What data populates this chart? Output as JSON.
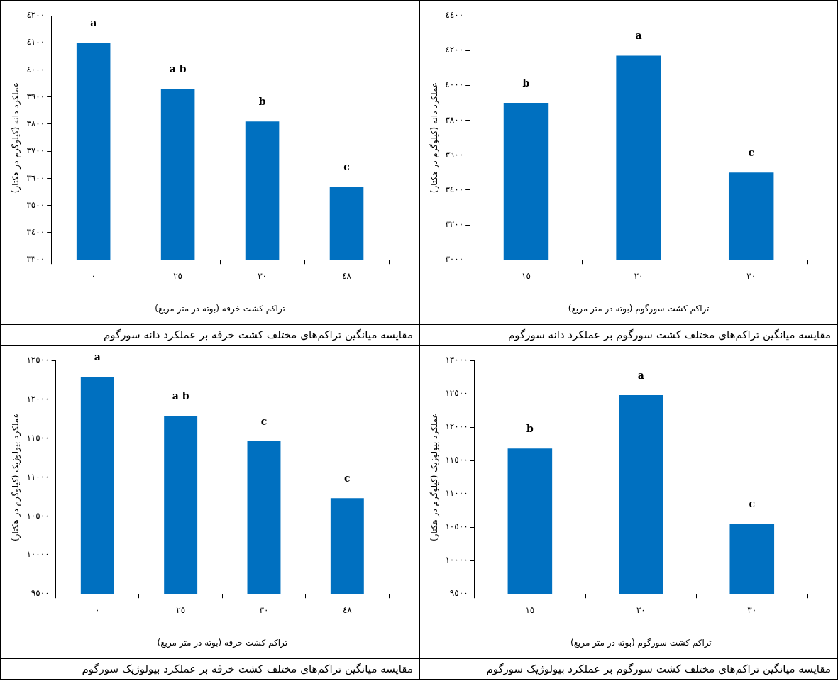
{
  "chart_data": [
    {
      "type": "bar",
      "title": "مقایسه میانگین تراکم‌های مختلف کشت خرفه بر عملکرد دانه سورگوم",
      "xlabel": "تراکم کشت خرفه (بوته در متر مربع)",
      "ylabel": "عملکرد دانه (کیلوگرم در هکتار)",
      "categories": [
        "٠",
        "٢٥",
        "٣٠",
        "٤٨"
      ],
      "values": [
        4100,
        3930,
        3810,
        3570
      ],
      "value_labels": [
        "a",
        "a b",
        "b",
        "c"
      ],
      "color": "#0070c0",
      "ylim": [
        3300,
        4200
      ],
      "yticks": [
        {
          "value": 3300,
          "label": "٣٣٠٠"
        },
        {
          "value": 3400,
          "label": "٣٤٠٠"
        },
        {
          "value": 3500,
          "label": "٣٥٠٠"
        },
        {
          "value": 3600,
          "label": "٣٦٠٠"
        },
        {
          "value": 3700,
          "label": "٣٧٠٠"
        },
        {
          "value": 3800,
          "label": "٣٨٠٠"
        },
        {
          "value": 3900,
          "label": "٣٩٠٠"
        },
        {
          "value": 4000,
          "label": "٤٠٠٠"
        },
        {
          "value": 4100,
          "label": "٤١٠٠"
        },
        {
          "value": 4200,
          "label": "٤٢٠٠"
        }
      ],
      "grid": false,
      "legend": false
    },
    {
      "type": "bar",
      "title": "مقایسه میانگین تراکم‌های مختلف کشت سورگوم بر عملکرد دانه سورگوم",
      "xlabel": "تراکم کشت سورگوم (بوته در متر مربع)",
      "ylabel": "عملکرد دانه (کیلوگرم در هکتار)",
      "categories": [
        "١٥",
        "٢٠",
        "٣٠"
      ],
      "values": [
        3900,
        4170,
        3500
      ],
      "value_labels": [
        "b",
        "a",
        "c"
      ],
      "color": "#0070c0",
      "ylim": [
        3000,
        4400
      ],
      "yticks": [
        {
          "value": 3000,
          "label": "٣٠٠٠"
        },
        {
          "value": 3200,
          "label": "٣٢٠٠"
        },
        {
          "value": 3400,
          "label": "٣٤٠٠"
        },
        {
          "value": 3600,
          "label": "٣٦٠٠"
        },
        {
          "value": 3800,
          "label": "٣٨٠٠"
        },
        {
          "value": 4000,
          "label": "٤٠٠٠"
        },
        {
          "value": 4200,
          "label": "٤٢٠٠"
        },
        {
          "value": 4400,
          "label": "٤٤٠٠"
        }
      ],
      "grid": false,
      "legend": false
    },
    {
      "type": "bar",
      "title": "مقایسه میانگین تراکم‌های مختلف کشت خرفه بر عملکرد بیولوژیک سورگوم",
      "xlabel": "تراکم کشت خرفه (بوته در متر مربع)",
      "ylabel": "عملکرد بیولوژیک (کیلوگرم در هکتار)",
      "categories": [
        "٠",
        "٢٥",
        "٣٠",
        "٤٨"
      ],
      "values": [
        12290,
        11790,
        11460,
        10730
      ],
      "value_labels": [
        "a",
        "a b",
        "c",
        "c"
      ],
      "color": "#0070c0",
      "ylim": [
        9500,
        12500
      ],
      "yticks": [
        {
          "value": 9500,
          "label": "٩٥٠٠"
        },
        {
          "value": 10000,
          "label": "١٠٠٠٠"
        },
        {
          "value": 10500,
          "label": "١٠٥٠٠"
        },
        {
          "value": 11000,
          "label": "١١٠٠٠"
        },
        {
          "value": 11500,
          "label": "١١٥٠٠"
        },
        {
          "value": 12000,
          "label": "١٢٠٠٠"
        },
        {
          "value": 12500,
          "label": "١٢٥٠٠"
        }
      ],
      "grid": false,
      "legend": false
    },
    {
      "type": "bar",
      "title": "مقایسه میانگین تراکم‌های مختلف کشت سورگوم بر عملکرد بیولوژیک سورگوم",
      "xlabel": "تراکم کشت سورگوم (بوته در متر مربع)",
      "ylabel": "عملکرد بیولوژیک (کیلوگرم در هکتار)",
      "categories": [
        "١٥",
        "٢٠",
        "٣٠"
      ],
      "values": [
        11680,
        12480,
        10550
      ],
      "value_labels": [
        "b",
        "a",
        "c"
      ],
      "color": "#0070c0",
      "ylim": [
        9500,
        13000
      ],
      "yticks": [
        {
          "value": 9500,
          "label": "٩٥٠٠"
        },
        {
          "value": 10000,
          "label": "١٠٠٠٠"
        },
        {
          "value": 10500,
          "label": "١٠٥٠٠"
        },
        {
          "value": 11000,
          "label": "١١٠٠٠"
        },
        {
          "value": 11500,
          "label": "١١٥٠٠"
        },
        {
          "value": 12000,
          "label": "١٢٠٠٠"
        },
        {
          "value": 12500,
          "label": "١٢٥٠٠"
        },
        {
          "value": 13000,
          "label": "١٣٠٠٠"
        }
      ],
      "grid": false,
      "legend": false
    }
  ]
}
